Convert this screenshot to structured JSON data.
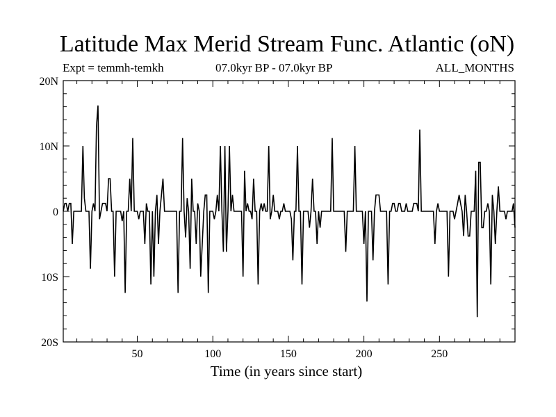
{
  "chart_data": {
    "type": "line",
    "title": "Latitude Max Merid Stream Func. Atlantic (oN)",
    "subtitle_left": "Expt = temmh-temkh",
    "subtitle_center": "07.0kyr BP - 07.0kyr BP",
    "subtitle_right": "ALL_MONTHS",
    "xlabel": "Time (in years since start)",
    "ylabel": "",
    "xlim": [
      1,
      300
    ],
    "ylim": [
      -20,
      20
    ],
    "x_ticks": [
      50,
      100,
      150,
      200,
      250
    ],
    "x_tick_labels": [
      "50",
      "100",
      "150",
      "200",
      "250"
    ],
    "y_ticks": [
      20,
      10,
      0,
      -10,
      -20
    ],
    "y_tick_labels": [
      "20N",
      "10N",
      "0",
      "10S",
      "20S"
    ],
    "series": [
      {
        "name": "Latitude Max Merid Stream Func. Atlantic",
        "color": "#000000",
        "points": [
          [
            1,
            0
          ],
          [
            2,
            1.2
          ],
          [
            3,
            1.2
          ],
          [
            4,
            0
          ],
          [
            5,
            1.2
          ],
          [
            6,
            1.2
          ],
          [
            7,
            -5
          ],
          [
            8,
            0
          ],
          [
            9,
            0
          ],
          [
            10,
            0
          ],
          [
            11,
            0
          ],
          [
            12,
            0
          ],
          [
            13,
            0
          ],
          [
            14,
            10
          ],
          [
            15,
            2
          ],
          [
            16,
            0
          ],
          [
            17,
            0
          ],
          [
            18,
            0
          ],
          [
            19,
            -8.8
          ],
          [
            20,
            0
          ],
          [
            21,
            1.2
          ],
          [
            22,
            0
          ],
          [
            23,
            13
          ],
          [
            24,
            16.2
          ],
          [
            25,
            -1.2
          ],
          [
            26,
            0
          ],
          [
            27,
            1.2
          ],
          [
            28,
            1.2
          ],
          [
            29,
            1.2
          ],
          [
            30,
            0
          ],
          [
            31,
            5
          ],
          [
            32,
            5
          ],
          [
            33,
            0
          ],
          [
            34,
            0
          ],
          [
            35,
            -10
          ],
          [
            36,
            0
          ],
          [
            37,
            0
          ],
          [
            38,
            0
          ],
          [
            39,
            0
          ],
          [
            40,
            -1.5
          ],
          [
            41,
            0
          ],
          [
            42,
            -12.5
          ],
          [
            43,
            0
          ],
          [
            44,
            0
          ],
          [
            45,
            5
          ],
          [
            46,
            0
          ],
          [
            47,
            11.2
          ],
          [
            48,
            0
          ],
          [
            49,
            0
          ],
          [
            50,
            0
          ],
          [
            51,
            -1.2
          ],
          [
            52,
            0
          ],
          [
            53,
            0
          ],
          [
            54,
            0
          ],
          [
            55,
            -5
          ],
          [
            56,
            1.2
          ],
          [
            57,
            0
          ],
          [
            58,
            0
          ],
          [
            59,
            -11.2
          ],
          [
            60,
            0
          ],
          [
            61,
            -10
          ],
          [
            62,
            0
          ],
          [
            63,
            2.5
          ],
          [
            64,
            -5
          ],
          [
            65,
            0
          ],
          [
            66,
            2.5
          ],
          [
            67,
            5
          ],
          [
            68,
            0
          ],
          [
            69,
            0
          ],
          [
            70,
            0
          ],
          [
            71,
            0
          ],
          [
            72,
            0
          ],
          [
            73,
            0
          ],
          [
            74,
            0
          ],
          [
            75,
            0
          ],
          [
            76,
            0
          ],
          [
            77,
            -12.5
          ],
          [
            78,
            0
          ],
          [
            79,
            0
          ],
          [
            80,
            11.2
          ],
          [
            81,
            0
          ],
          [
            82,
            -4
          ],
          [
            83,
            2
          ],
          [
            84,
            0
          ],
          [
            85,
            -8.8
          ],
          [
            86,
            5
          ],
          [
            87,
            0
          ],
          [
            88,
            0
          ],
          [
            89,
            -5
          ],
          [
            90,
            1.2
          ],
          [
            91,
            0
          ],
          [
            92,
            -10
          ],
          [
            93,
            -5
          ],
          [
            94,
            0
          ],
          [
            95,
            2.5
          ],
          [
            96,
            2.5
          ],
          [
            97,
            -12.5
          ],
          [
            98,
            0
          ],
          [
            99,
            0
          ],
          [
            100,
            0
          ],
          [
            101,
            -1.2
          ],
          [
            102,
            0
          ],
          [
            103,
            2.5
          ],
          [
            104,
            0
          ],
          [
            105,
            10
          ],
          [
            106,
            0
          ],
          [
            107,
            -6.2
          ],
          [
            108,
            10
          ],
          [
            109,
            -6.2
          ],
          [
            110,
            0
          ],
          [
            111,
            10
          ],
          [
            112,
            0
          ],
          [
            113,
            2.5
          ],
          [
            114,
            0
          ],
          [
            115,
            0
          ],
          [
            116,
            0
          ],
          [
            117,
            0
          ],
          [
            118,
            0
          ],
          [
            119,
            0
          ],
          [
            120,
            -10
          ],
          [
            121,
            6.2
          ],
          [
            122,
            0
          ],
          [
            123,
            1.2
          ],
          [
            124,
            0
          ],
          [
            125,
            0
          ],
          [
            126,
            -1.2
          ],
          [
            127,
            5
          ],
          [
            128,
            0
          ],
          [
            129,
            0
          ],
          [
            130,
            -11.2
          ],
          [
            131,
            0
          ],
          [
            132,
            1.2
          ],
          [
            133,
            0
          ],
          [
            134,
            1.2
          ],
          [
            135,
            0
          ],
          [
            136,
            0
          ],
          [
            137,
            10
          ],
          [
            138,
            -1.2
          ],
          [
            139,
            0
          ],
          [
            140,
            2.5
          ],
          [
            141,
            0
          ],
          [
            142,
            0
          ],
          [
            143,
            0
          ],
          [
            144,
            -1.2
          ],
          [
            145,
            0
          ],
          [
            146,
            0
          ],
          [
            147,
            1.2
          ],
          [
            148,
            0
          ],
          [
            149,
            0
          ],
          [
            150,
            0
          ],
          [
            151,
            0
          ],
          [
            152,
            -1.2
          ],
          [
            153,
            -7.5
          ],
          [
            154,
            0
          ],
          [
            155,
            0
          ],
          [
            156,
            10
          ],
          [
            157,
            0
          ],
          [
            158,
            0
          ],
          [
            159,
            -11.2
          ],
          [
            160,
            0
          ],
          [
            161,
            0
          ],
          [
            162,
            0
          ],
          [
            163,
            0
          ],
          [
            164,
            -2.5
          ],
          [
            165,
            0
          ],
          [
            166,
            5
          ],
          [
            167,
            0
          ],
          [
            168,
            0
          ],
          [
            169,
            -5
          ],
          [
            170,
            0
          ],
          [
            171,
            -2.5
          ],
          [
            172,
            0
          ],
          [
            173,
            0
          ],
          [
            174,
            0
          ],
          [
            175,
            0
          ],
          [
            176,
            0
          ],
          [
            177,
            0
          ],
          [
            178,
            0
          ],
          [
            179,
            11.2
          ],
          [
            180,
            0
          ],
          [
            181,
            0
          ],
          [
            182,
            0
          ],
          [
            183,
            0
          ],
          [
            184,
            0
          ],
          [
            185,
            0
          ],
          [
            186,
            0
          ],
          [
            187,
            0
          ],
          [
            188,
            -6.2
          ],
          [
            189,
            0
          ],
          [
            190,
            0
          ],
          [
            191,
            0
          ],
          [
            192,
            0
          ],
          [
            193,
            0
          ],
          [
            194,
            10
          ],
          [
            195,
            0
          ],
          [
            196,
            0
          ],
          [
            197,
            0
          ],
          [
            198,
            0
          ],
          [
            199,
            0
          ],
          [
            200,
            -5
          ],
          [
            201,
            0
          ],
          [
            202,
            -13.8
          ],
          [
            203,
            0
          ],
          [
            204,
            0
          ],
          [
            205,
            0
          ],
          [
            206,
            -7.5
          ],
          [
            207,
            0
          ],
          [
            208,
            2.5
          ],
          [
            209,
            2.5
          ],
          [
            210,
            2.5
          ],
          [
            211,
            0
          ],
          [
            212,
            0
          ],
          [
            213,
            0
          ],
          [
            214,
            0
          ],
          [
            215,
            0
          ],
          [
            216,
            -11.2
          ],
          [
            217,
            0
          ],
          [
            218,
            0
          ],
          [
            219,
            1.2
          ],
          [
            220,
            1.2
          ],
          [
            221,
            0
          ],
          [
            222,
            0
          ],
          [
            223,
            1.2
          ],
          [
            224,
            1.2
          ],
          [
            225,
            0
          ],
          [
            226,
            0
          ],
          [
            227,
            0
          ],
          [
            228,
            1.2
          ],
          [
            229,
            0
          ],
          [
            230,
            0
          ],
          [
            231,
            0
          ],
          [
            232,
            0
          ],
          [
            233,
            1.2
          ],
          [
            234,
            1.2
          ],
          [
            235,
            1.2
          ],
          [
            236,
            0
          ],
          [
            237,
            12.5
          ],
          [
            238,
            0
          ],
          [
            239,
            0
          ],
          [
            240,
            0
          ],
          [
            241,
            0
          ],
          [
            242,
            0
          ],
          [
            243,
            0
          ],
          [
            244,
            0
          ],
          [
            245,
            0
          ],
          [
            246,
            0
          ],
          [
            247,
            -5
          ],
          [
            248,
            0
          ],
          [
            249,
            1.2
          ],
          [
            250,
            0
          ],
          [
            251,
            0
          ],
          [
            252,
            0
          ],
          [
            253,
            0
          ],
          [
            254,
            0
          ],
          [
            255,
            0
          ],
          [
            256,
            -10
          ],
          [
            257,
            0
          ],
          [
            258,
            0
          ],
          [
            259,
            0
          ],
          [
            260,
            -1.2
          ],
          [
            261,
            0
          ],
          [
            262,
            1.2
          ],
          [
            263,
            2.5
          ],
          [
            264,
            1.2
          ],
          [
            265,
            0
          ],
          [
            266,
            -3.8
          ],
          [
            267,
            2.5
          ],
          [
            268,
            0
          ],
          [
            269,
            -3.8
          ],
          [
            270,
            -3.8
          ],
          [
            271,
            0
          ],
          [
            272,
            0
          ],
          [
            273,
            0
          ],
          [
            274,
            6.2
          ],
          [
            275,
            -16.2
          ],
          [
            276,
            7.5
          ],
          [
            277,
            7.5
          ],
          [
            278,
            -2.5
          ],
          [
            279,
            -2.5
          ],
          [
            280,
            0
          ],
          [
            281,
            0
          ],
          [
            282,
            1.2
          ],
          [
            283,
            0
          ],
          [
            284,
            -11.2
          ],
          [
            285,
            2.5
          ],
          [
            286,
            0
          ],
          [
            287,
            -5
          ],
          [
            288,
            0
          ],
          [
            289,
            3.8
          ],
          [
            290,
            0
          ],
          [
            291,
            0
          ],
          [
            292,
            0
          ],
          [
            293,
            0
          ],
          [
            294,
            -1.2
          ],
          [
            295,
            0
          ],
          [
            296,
            0
          ],
          [
            297,
            0
          ],
          [
            298,
            0
          ],
          [
            299,
            1.2
          ],
          [
            300,
            -2.5
          ]
        ]
      }
    ]
  }
}
